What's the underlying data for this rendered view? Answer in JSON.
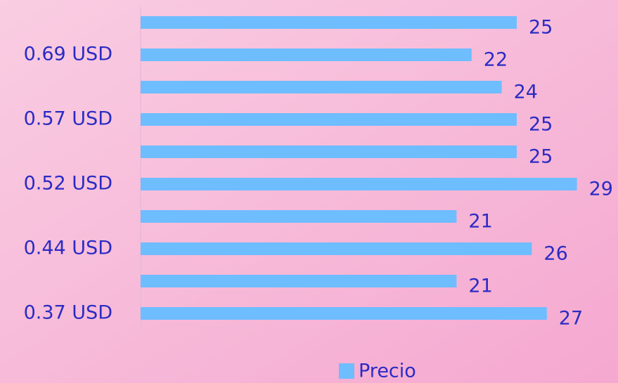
{
  "chart_data": {
    "type": "bar",
    "orientation": "horizontal",
    "categories": [
      null,
      "0.69 USD",
      null,
      "0.57 USD",
      null,
      "0.52 USD",
      null,
      "0.44 USD",
      null,
      "0.37 USD"
    ],
    "series": [
      {
        "name": "Precio",
        "color": "#6ebdff",
        "values": [
          25,
          22,
          24,
          25,
          25,
          29,
          21,
          26,
          21,
          27
        ]
      }
    ],
    "xlim": [
      0,
      30
    ],
    "legend": "bottom"
  }
}
